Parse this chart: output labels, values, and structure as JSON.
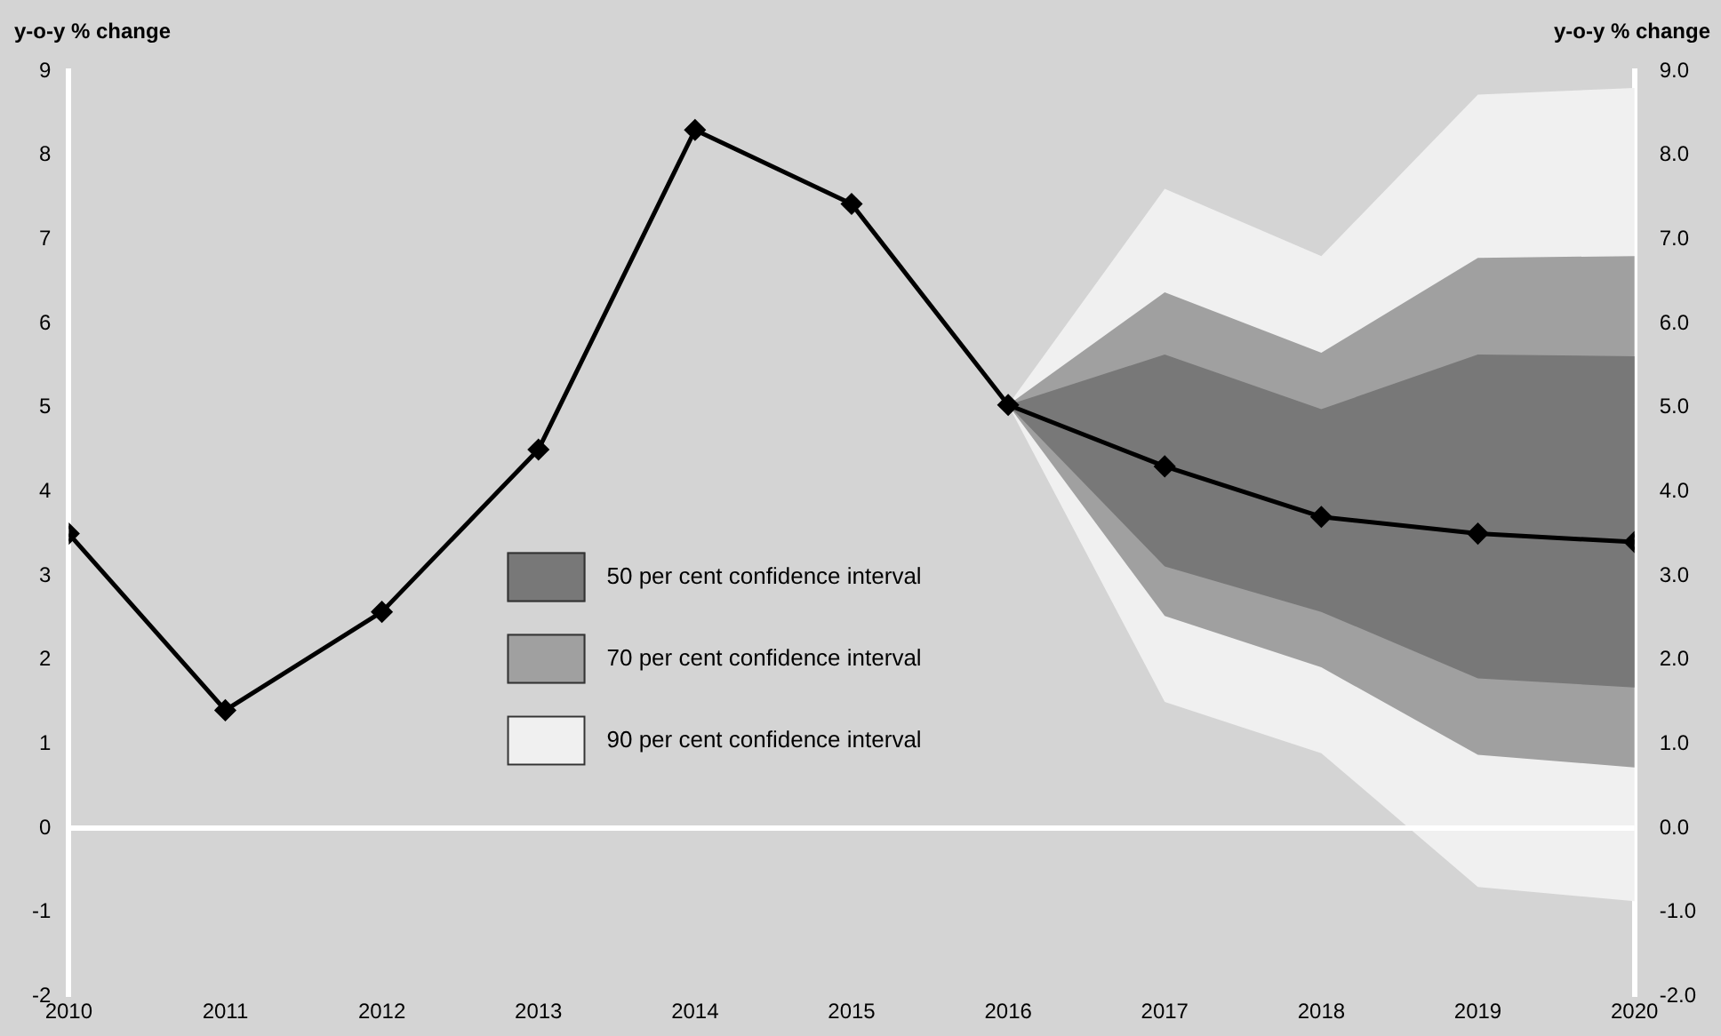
{
  "chart_data": {
    "type": "line",
    "ylabel": "y-o-y % change",
    "y2label": "y-o-y % change",
    "x": [
      2010,
      2011,
      2012,
      2013,
      2014,
      2015,
      2016,
      2017,
      2018,
      2019,
      2020
    ],
    "xlim": [
      2010,
      2020
    ],
    "xticks": [
      2010,
      2011,
      2012,
      2013,
      2014,
      2015,
      2016,
      2017,
      2018,
      2019,
      2020
    ],
    "ylim": [
      -2,
      9
    ],
    "yticks": [
      -2,
      -1,
      0,
      1,
      2,
      3,
      4,
      5,
      6,
      7,
      8,
      9
    ],
    "y2lim": [
      -2,
      9
    ],
    "y2ticks": [
      {
        "value": -2,
        "label": "-2.0"
      },
      {
        "value": -1,
        "label": "-1.0"
      },
      {
        "value": 0,
        "label": "0.0"
      },
      {
        "value": 1,
        "label": "1.0"
      },
      {
        "value": 2,
        "label": "2.0"
      },
      {
        "value": 3,
        "label": "3.0"
      },
      {
        "value": 4,
        "label": "4.0"
      },
      {
        "value": 5,
        "label": "5.0"
      },
      {
        "value": 6,
        "label": "6.0"
      },
      {
        "value": 7,
        "label": "7.0"
      },
      {
        "value": 8,
        "label": "8.0"
      },
      {
        "value": 9,
        "label": "9.0"
      }
    ],
    "series": [
      {
        "type": "line",
        "color": "#000000",
        "values": [
          3.5,
          1.4,
          2.57,
          4.5,
          8.3,
          7.42,
          5.03,
          4.3,
          3.7,
          3.5,
          3.4
        ]
      },
      {
        "type": "area",
        "name": "50 per cent confidence interval",
        "color": "#787878",
        "values": [
          null,
          null,
          null,
          null,
          null,
          null,
          null,
          null,
          null,
          null,
          null
        ],
        "lower": [
          null,
          null,
          null,
          null,
          null,
          null,
          5.03,
          3.11,
          2.57,
          1.78,
          1.67
        ],
        "upper": [
          null,
          null,
          null,
          null,
          null,
          null,
          5.03,
          5.63,
          4.98,
          5.63,
          5.61
        ]
      },
      {
        "type": "area",
        "name": "70 per cent confidence interval",
        "color": "#a0a0a0",
        "values": [
          null,
          null,
          null,
          null,
          null,
          null,
          null,
          null,
          null,
          null,
          null
        ],
        "lower": [
          null,
          null,
          null,
          null,
          null,
          null,
          5.03,
          2.52,
          1.91,
          0.87,
          0.72
        ],
        "upper": [
          null,
          null,
          null,
          null,
          null,
          null,
          5.03,
          6.37,
          5.65,
          6.78,
          6.8
        ]
      },
      {
        "type": "area",
        "name": "90 per cent confidence interval",
        "color": "#f0f0f0",
        "values": [
          null,
          null,
          null,
          null,
          null,
          null,
          null,
          null,
          null,
          null,
          null
        ],
        "lower": [
          null,
          null,
          null,
          null,
          null,
          null,
          5.03,
          1.5,
          0.89,
          -0.7,
          -0.87
        ],
        "upper": [
          null,
          null,
          null,
          null,
          null,
          null,
          5.03,
          7.6,
          6.8,
          8.72,
          8.8
        ]
      }
    ],
    "ref_lines": [
      {
        "axis": "y",
        "value": 0,
        "color": "#ffffff"
      }
    ],
    "marker": "diamond",
    "legend": "bottom"
  }
}
